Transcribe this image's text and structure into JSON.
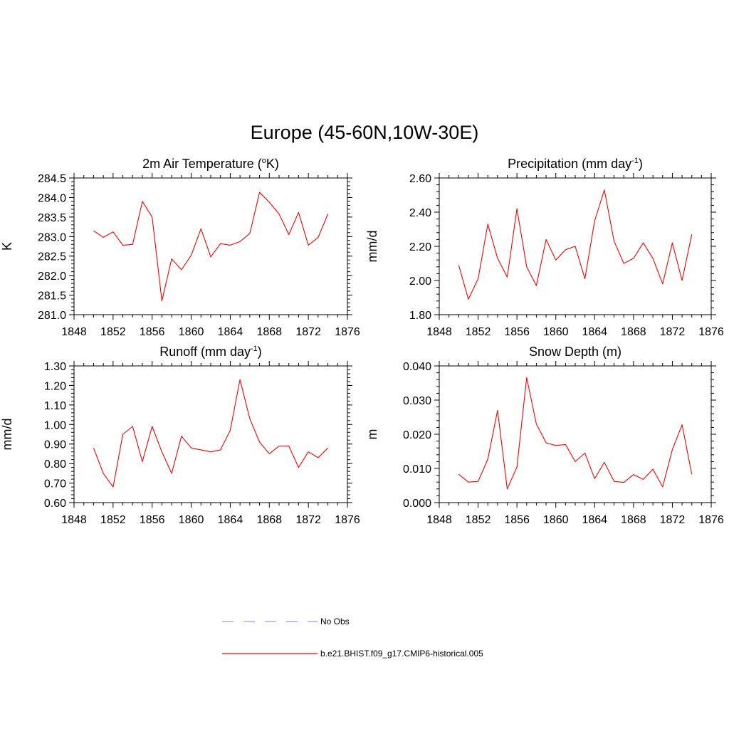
{
  "figure": {
    "title": "Europe (45-60N,10W-30E)"
  },
  "legend": {
    "entries": [
      {
        "label": "No Obs",
        "color": "#9999ff",
        "dash": true
      },
      {
        "label": "b.e21.BHIST.f09_g17.CMIP6-historical.005",
        "color": "#ff0000",
        "dash": false
      }
    ]
  },
  "chart_data": [
    {
      "type": "line",
      "title": "2m Air Temperature (",
      "title_sup": "o",
      "title_after": "K)",
      "ylabel": "K",
      "xlim": [
        1848,
        1876
      ],
      "x_ticks": [
        1848,
        1852,
        1856,
        1860,
        1864,
        1868,
        1872,
        1876
      ],
      "x_tick_labels": [
        "1848",
        "1852",
        "1856",
        "1860",
        "1864",
        "1868",
        "1872",
        "1876"
      ],
      "ylim": [
        281.0,
        284.5
      ],
      "y_ticks": [
        281.0,
        281.5,
        282.0,
        282.5,
        283.0,
        283.5,
        284.0,
        284.5
      ],
      "y_tick_labels": [
        "281.0",
        "281.5",
        "282.0",
        "282.5",
        "283.0",
        "283.5",
        "284.0",
        "284.5"
      ],
      "y_minor_step": 0.1,
      "series": [
        {
          "color": "#ff0000",
          "x": [
            1850,
            1851,
            1852,
            1853,
            1854,
            1855,
            1856,
            1857,
            1858,
            1859,
            1860,
            1861,
            1862,
            1863,
            1864,
            1865,
            1866,
            1867,
            1868,
            1869,
            1870,
            1871,
            1872,
            1873,
            1874
          ],
          "y": [
            283.15,
            282.98,
            283.12,
            282.78,
            282.8,
            283.9,
            283.5,
            281.35,
            282.43,
            282.15,
            282.52,
            283.2,
            282.48,
            282.82,
            282.78,
            282.87,
            283.08,
            284.13,
            283.88,
            283.58,
            283.05,
            283.62,
            282.78,
            282.98,
            283.58
          ]
        }
      ]
    },
    {
      "type": "line",
      "title": "Precipitation (mm day",
      "title_sup": "-1",
      "title_after": ")",
      "ylabel": "mm/d",
      "xlim": [
        1848,
        1876
      ],
      "x_ticks": [
        1848,
        1852,
        1856,
        1860,
        1864,
        1868,
        1872,
        1876
      ],
      "x_tick_labels": [
        "1848",
        "1852",
        "1856",
        "1860",
        "1864",
        "1868",
        "1872",
        "1876"
      ],
      "ylim": [
        1.8,
        2.6
      ],
      "y_ticks": [
        1.8,
        2.0,
        2.2,
        2.4,
        2.6
      ],
      "y_tick_labels": [
        "1.80",
        "2.00",
        "2.20",
        "2.40",
        "2.60"
      ],
      "y_minor_step": 0.04,
      "series": [
        {
          "color": "#ff0000",
          "x": [
            1850,
            1851,
            1852,
            1853,
            1854,
            1855,
            1856,
            1857,
            1858,
            1859,
            1860,
            1861,
            1862,
            1863,
            1864,
            1865,
            1866,
            1867,
            1868,
            1869,
            1870,
            1871,
            1872,
            1873,
            1874
          ],
          "y": [
            2.09,
            1.89,
            2.01,
            2.33,
            2.13,
            2.02,
            2.42,
            2.08,
            1.97,
            2.24,
            2.12,
            2.18,
            2.2,
            2.01,
            2.35,
            2.53,
            2.23,
            2.1,
            2.13,
            2.22,
            2.13,
            1.98,
            2.22,
            2.0,
            2.27
          ]
        }
      ]
    },
    {
      "type": "line",
      "title": "Runoff (mm day",
      "title_sup": "-1",
      "title_after": ")",
      "ylabel": "mm/d",
      "xlim": [
        1848,
        1876
      ],
      "x_ticks": [
        1848,
        1852,
        1856,
        1860,
        1864,
        1868,
        1872,
        1876
      ],
      "x_tick_labels": [
        "1848",
        "1852",
        "1856",
        "1860",
        "1864",
        "1868",
        "1872",
        "1876"
      ],
      "ylim": [
        0.6,
        1.3
      ],
      "y_ticks": [
        0.6,
        0.7,
        0.8,
        0.9,
        1.0,
        1.1,
        1.2,
        1.3
      ],
      "y_tick_labels": [
        "0.60",
        "0.70",
        "0.80",
        "0.90",
        "1.00",
        "1.10",
        "1.20",
        "1.30"
      ],
      "y_minor_step": 0.02,
      "series": [
        {
          "color": "#ff0000",
          "x": [
            1850,
            1851,
            1852,
            1853,
            1854,
            1855,
            1856,
            1857,
            1858,
            1859,
            1860,
            1861,
            1862,
            1863,
            1864,
            1865,
            1866,
            1867,
            1868,
            1869,
            1870,
            1871,
            1872,
            1873,
            1874
          ],
          "y": [
            0.88,
            0.75,
            0.68,
            0.95,
            0.99,
            0.81,
            0.99,
            0.86,
            0.75,
            0.94,
            0.88,
            0.87,
            0.86,
            0.87,
            0.97,
            1.23,
            1.03,
            0.91,
            0.85,
            0.89,
            0.89,
            0.78,
            0.86,
            0.83,
            0.88
          ]
        }
      ]
    },
    {
      "type": "line",
      "title": "Snow Depth (m)",
      "title_sup": "",
      "title_after": "",
      "ylabel": "m",
      "xlim": [
        1848,
        1876
      ],
      "x_ticks": [
        1848,
        1852,
        1856,
        1860,
        1864,
        1868,
        1872,
        1876
      ],
      "x_tick_labels": [
        "1848",
        "1852",
        "1856",
        "1860",
        "1864",
        "1868",
        "1872",
        "1876"
      ],
      "ylim": [
        0.0,
        0.04
      ],
      "y_ticks": [
        0.0,
        0.01,
        0.02,
        0.03,
        0.04
      ],
      "y_tick_labels": [
        "0.000",
        "0.010",
        "0.020",
        "0.030",
        "0.040"
      ],
      "y_minor_step": 0.002,
      "series": [
        {
          "color": "#ff0000",
          "x": [
            1850,
            1851,
            1852,
            1853,
            1854,
            1855,
            1856,
            1857,
            1858,
            1859,
            1860,
            1861,
            1862,
            1863,
            1864,
            1865,
            1866,
            1867,
            1868,
            1869,
            1870,
            1871,
            1872,
            1873,
            1874
          ],
          "y": [
            0.0083,
            0.006,
            0.0062,
            0.0127,
            0.027,
            0.004,
            0.0104,
            0.0366,
            0.023,
            0.0175,
            0.0167,
            0.017,
            0.012,
            0.0145,
            0.007,
            0.0118,
            0.0062,
            0.0059,
            0.0082,
            0.0068,
            0.0098,
            0.0046,
            0.0155,
            0.0228,
            0.0083
          ]
        }
      ]
    }
  ]
}
